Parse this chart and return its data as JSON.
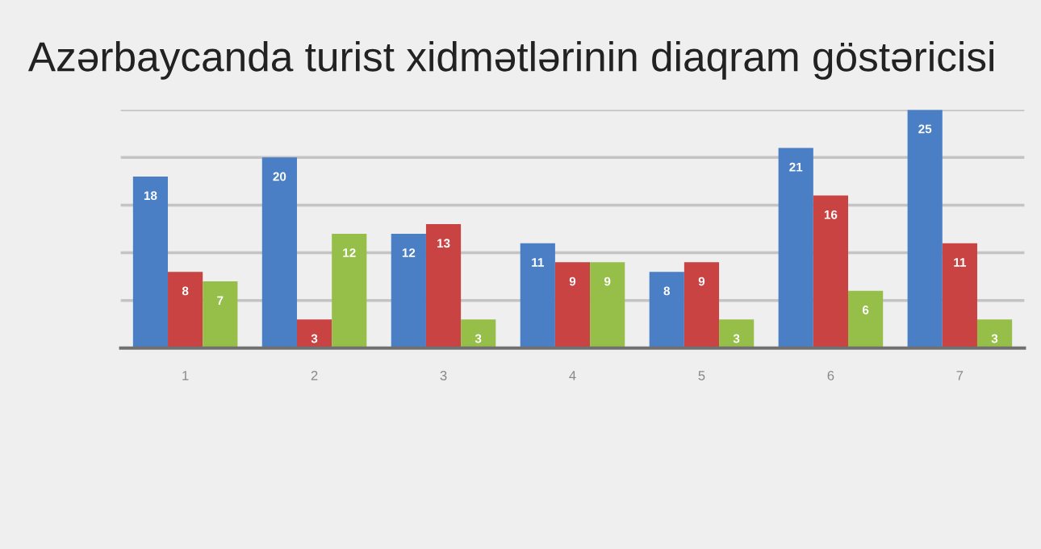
{
  "chart_data": {
    "type": "bar",
    "title": "Azərbaycanda turist xidmətlərinin diaqram göstəricisi",
    "categories": [
      "1",
      "2",
      "3",
      "4",
      "5",
      "6",
      "7"
    ],
    "series": [
      {
        "color": "#4a7fc6",
        "values": [
          18,
          20,
          12,
          11,
          8,
          21,
          25
        ]
      },
      {
        "color": "#c94343",
        "values": [
          8,
          3,
          13,
          9,
          9,
          16,
          11
        ]
      },
      {
        "color": "#96bf4a",
        "values": [
          7,
          12,
          3,
          9,
          3,
          6,
          3
        ]
      }
    ],
    "ylim": [
      0,
      25
    ],
    "yticks": [
      {
        "value": 0,
        "label": null
      },
      {
        "value": 5,
        "label": null
      },
      {
        "value": 10,
        "label": null
      },
      {
        "value": 15,
        "label": null
      },
      {
        "value": 20,
        "label": null
      },
      {
        "value": 25,
        "label": null
      }
    ],
    "grid": "y",
    "tick_labels": "x",
    "data_labels": true
  }
}
